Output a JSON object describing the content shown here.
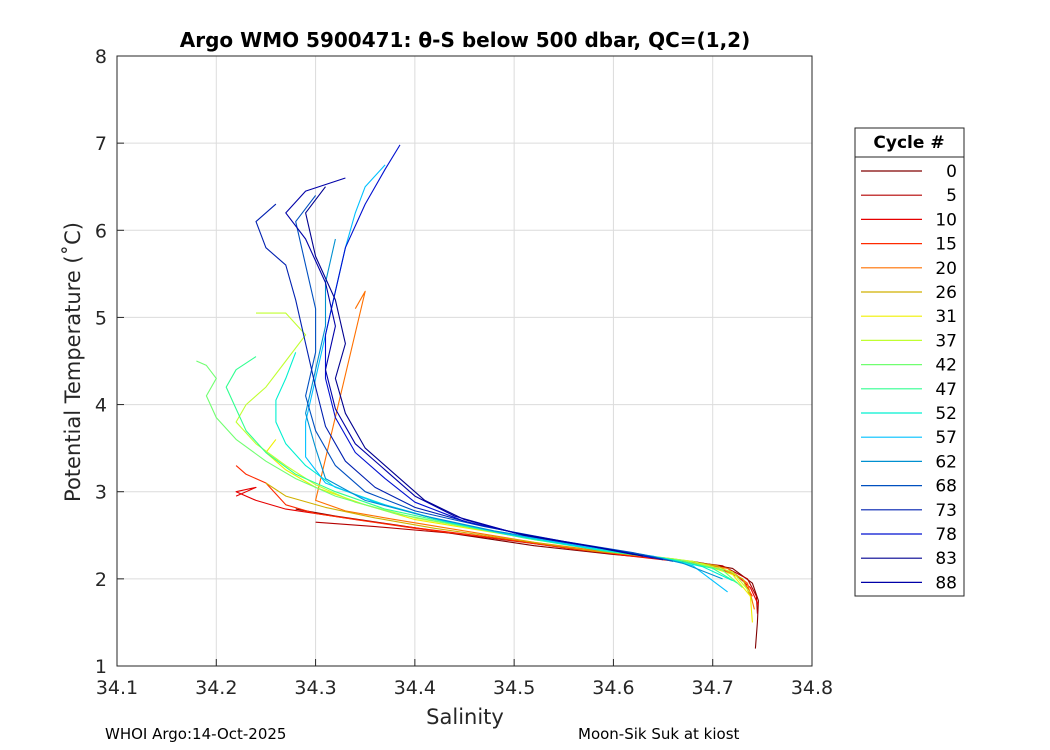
{
  "chart_data": {
    "type": "line",
    "title": "Argo WMO 5900471: θ-S below 500 dbar,  QC=(1,2)",
    "xlabel": "Salinity",
    "ylabel": "Potential Temperature (˚C)",
    "xlim": [
      34.1,
      34.8
    ],
    "ylim": [
      1,
      8
    ],
    "xticks": [
      "34.1",
      "34.2",
      "34.3",
      "34.4",
      "34.5",
      "34.6",
      "34.7",
      "34.8"
    ],
    "yticks": [
      "1",
      "2",
      "3",
      "4",
      "5",
      "6",
      "7",
      "8"
    ],
    "grid": true,
    "legend": {
      "title": "Cycle #",
      "placement": "right",
      "entries": [
        "0",
        "5",
        "10",
        "15",
        "20",
        "26",
        "31",
        "37",
        "42",
        "47",
        "52",
        "57",
        "62",
        "68",
        "73",
        "78",
        "83",
        "88"
      ],
      "colors": [
        "#800000",
        "#b40000",
        "#e60000",
        "#ff2a00",
        "#ff7000",
        "#d0b000",
        "#f0f000",
        "#c0ff30",
        "#70ff70",
        "#30ff90",
        "#00f0d0",
        "#00c0ff",
        "#0090d0",
        "#0050c0",
        "#0020b0",
        "#0010d0",
        "#000090",
        "#0000a8"
      ]
    },
    "series": [
      {
        "name": "0",
        "color": "#800000",
        "points": [
          [
            34.743,
            1.2
          ],
          [
            34.745,
            1.5
          ],
          [
            34.746,
            1.75
          ],
          [
            34.74,
            1.95
          ],
          [
            34.72,
            2.12
          ],
          [
            34.68,
            2.2
          ],
          [
            34.6,
            2.28
          ],
          [
            34.52,
            2.38
          ],
          [
            34.45,
            2.5
          ],
          [
            34.38,
            2.62
          ],
          [
            34.32,
            2.72
          ],
          [
            34.28,
            2.8
          ]
        ]
      },
      {
        "name": "5",
        "color": "#b40000",
        "points": [
          [
            34.745,
            1.6
          ],
          [
            34.744,
            1.8
          ],
          [
            34.735,
            2.0
          ],
          [
            34.71,
            2.15
          ],
          [
            34.66,
            2.22
          ],
          [
            34.59,
            2.3
          ],
          [
            34.51,
            2.42
          ],
          [
            34.44,
            2.52
          ],
          [
            34.36,
            2.6
          ],
          [
            34.3,
            2.65
          ]
        ]
      },
      {
        "name": "10",
        "color": "#e60000",
        "points": [
          [
            34.746,
            1.7
          ],
          [
            34.738,
            1.9
          ],
          [
            34.72,
            2.08
          ],
          [
            34.68,
            2.18
          ],
          [
            34.61,
            2.27
          ],
          [
            34.53,
            2.4
          ],
          [
            34.46,
            2.5
          ],
          [
            34.39,
            2.6
          ],
          [
            34.33,
            2.7
          ],
          [
            34.27,
            2.8
          ],
          [
            34.24,
            2.9
          ],
          [
            34.22,
            3.0
          ],
          [
            34.24,
            3.05
          ],
          [
            34.22,
            2.95
          ]
        ]
      },
      {
        "name": "15",
        "color": "#ff2a00",
        "points": [
          [
            34.74,
            1.8
          ],
          [
            34.73,
            2.0
          ],
          [
            34.7,
            2.15
          ],
          [
            34.64,
            2.24
          ],
          [
            34.56,
            2.34
          ],
          [
            34.48,
            2.47
          ],
          [
            34.4,
            2.58
          ],
          [
            34.34,
            2.68
          ],
          [
            34.3,
            2.75
          ],
          [
            34.27,
            2.85
          ],
          [
            34.25,
            3.1
          ],
          [
            34.23,
            3.2
          ],
          [
            34.22,
            3.3
          ]
        ]
      },
      {
        "name": "20",
        "color": "#ff7000",
        "points": [
          [
            34.742,
            1.65
          ],
          [
            34.735,
            1.95
          ],
          [
            34.715,
            2.12
          ],
          [
            34.67,
            2.21
          ],
          [
            34.6,
            2.3
          ],
          [
            34.52,
            2.42
          ],
          [
            34.45,
            2.55
          ],
          [
            34.38,
            2.68
          ],
          [
            34.33,
            2.78
          ],
          [
            34.3,
            2.9
          ],
          [
            34.35,
            5.3
          ],
          [
            34.34,
            5.1
          ]
        ]
      },
      {
        "name": "26",
        "color": "#d0b000",
        "points": [
          [
            34.74,
            1.75
          ],
          [
            34.73,
            2.0
          ],
          [
            34.705,
            2.15
          ],
          [
            34.66,
            2.23
          ],
          [
            34.58,
            2.32
          ],
          [
            34.5,
            2.45
          ],
          [
            34.42,
            2.58
          ],
          [
            34.36,
            2.7
          ],
          [
            34.31,
            2.82
          ],
          [
            34.27,
            2.95
          ],
          [
            34.25,
            3.1
          ]
        ]
      },
      {
        "name": "31",
        "color": "#f0f000",
        "points": [
          [
            34.74,
            1.5
          ],
          [
            34.738,
            1.8
          ],
          [
            34.72,
            2.05
          ],
          [
            34.68,
            2.2
          ],
          [
            34.61,
            2.3
          ],
          [
            34.54,
            2.42
          ],
          [
            34.47,
            2.55
          ],
          [
            34.4,
            2.68
          ],
          [
            34.35,
            2.85
          ],
          [
            34.3,
            3.05
          ],
          [
            34.27,
            3.25
          ],
          [
            34.25,
            3.45
          ],
          [
            34.26,
            3.6
          ]
        ]
      },
      {
        "name": "37",
        "color": "#c0ff30",
        "points": [
          [
            34.737,
            1.85
          ],
          [
            34.72,
            2.08
          ],
          [
            34.68,
            2.2
          ],
          [
            34.61,
            2.3
          ],
          [
            34.54,
            2.42
          ],
          [
            34.47,
            2.56
          ],
          [
            34.4,
            2.7
          ],
          [
            34.34,
            2.88
          ],
          [
            34.3,
            3.08
          ],
          [
            34.27,
            3.3
          ],
          [
            34.24,
            3.55
          ],
          [
            34.22,
            3.8
          ],
          [
            34.23,
            4.0
          ],
          [
            34.25,
            4.2
          ],
          [
            34.27,
            4.5
          ],
          [
            34.29,
            4.8
          ],
          [
            34.27,
            5.05
          ],
          [
            34.24,
            5.05
          ]
        ]
      },
      {
        "name": "42",
        "color": "#70ff70",
        "points": [
          [
            34.73,
            1.9
          ],
          [
            34.71,
            2.1
          ],
          [
            34.67,
            2.21
          ],
          [
            34.6,
            2.31
          ],
          [
            34.52,
            2.45
          ],
          [
            34.45,
            2.6
          ],
          [
            34.38,
            2.75
          ],
          [
            34.32,
            2.95
          ],
          [
            34.28,
            3.15
          ],
          [
            34.25,
            3.35
          ],
          [
            34.22,
            3.6
          ],
          [
            34.2,
            3.85
          ],
          [
            34.19,
            4.1
          ],
          [
            34.2,
            4.3
          ],
          [
            34.19,
            4.45
          ],
          [
            34.18,
            4.5
          ]
        ]
      },
      {
        "name": "47",
        "color": "#30ff90",
        "points": [
          [
            34.725,
            1.95
          ],
          [
            34.7,
            2.12
          ],
          [
            34.66,
            2.22
          ],
          [
            34.59,
            2.32
          ],
          [
            34.51,
            2.47
          ],
          [
            34.44,
            2.63
          ],
          [
            34.37,
            2.8
          ],
          [
            34.32,
            3.0
          ],
          [
            34.28,
            3.2
          ],
          [
            34.25,
            3.45
          ],
          [
            34.23,
            3.7
          ],
          [
            34.22,
            3.95
          ],
          [
            34.21,
            4.2
          ],
          [
            34.22,
            4.4
          ],
          [
            34.24,
            4.55
          ]
        ]
      },
      {
        "name": "52",
        "color": "#00f0d0",
        "points": [
          [
            34.72,
            1.98
          ],
          [
            34.69,
            2.14
          ],
          [
            34.65,
            2.24
          ],
          [
            34.58,
            2.34
          ],
          [
            34.5,
            2.5
          ],
          [
            34.43,
            2.66
          ],
          [
            34.37,
            2.85
          ],
          [
            34.32,
            3.05
          ],
          [
            34.29,
            3.3
          ],
          [
            34.27,
            3.55
          ],
          [
            34.26,
            3.8
          ],
          [
            34.26,
            4.05
          ],
          [
            34.27,
            4.3
          ],
          [
            34.28,
            4.6
          ]
        ]
      },
      {
        "name": "57",
        "color": "#00c0ff",
        "points": [
          [
            34.715,
            1.85
          ],
          [
            34.68,
            2.15
          ],
          [
            34.64,
            2.26
          ],
          [
            34.57,
            2.37
          ],
          [
            34.49,
            2.52
          ],
          [
            34.42,
            2.69
          ],
          [
            34.36,
            2.88
          ],
          [
            34.31,
            3.1
          ],
          [
            34.29,
            3.4
          ],
          [
            34.29,
            3.8
          ],
          [
            34.3,
            4.3
          ],
          [
            34.31,
            4.8
          ],
          [
            34.32,
            5.3
          ],
          [
            34.33,
            5.8
          ],
          [
            34.34,
            6.2
          ],
          [
            34.35,
            6.5
          ],
          [
            34.37,
            6.75
          ]
        ]
      },
      {
        "name": "62",
        "color": "#0090d0",
        "points": [
          [
            34.71,
            2.0
          ],
          [
            34.67,
            2.18
          ],
          [
            34.63,
            2.28
          ],
          [
            34.56,
            2.4
          ],
          [
            34.48,
            2.55
          ],
          [
            34.41,
            2.72
          ],
          [
            34.35,
            2.9
          ],
          [
            34.31,
            3.15
          ],
          [
            34.3,
            3.5
          ],
          [
            34.29,
            3.9
          ],
          [
            34.3,
            4.4
          ],
          [
            34.31,
            4.9
          ],
          [
            34.31,
            5.4
          ],
          [
            34.32,
            5.9
          ]
        ]
      },
      {
        "name": "68",
        "color": "#0050c0",
        "points": [
          [
            34.66,
            2.2
          ],
          [
            34.62,
            2.3
          ],
          [
            34.55,
            2.43
          ],
          [
            34.47,
            2.6
          ],
          [
            34.4,
            2.78
          ],
          [
            34.35,
            3.0
          ],
          [
            34.32,
            3.3
          ],
          [
            34.3,
            3.7
          ],
          [
            34.29,
            4.1
          ],
          [
            34.3,
            4.6
          ],
          [
            34.3,
            5.1
          ],
          [
            34.29,
            5.6
          ],
          [
            34.28,
            6.1
          ],
          [
            34.3,
            6.4
          ]
        ]
      },
      {
        "name": "73",
        "color": "#0020b0",
        "points": [
          [
            34.65,
            2.22
          ],
          [
            34.6,
            2.33
          ],
          [
            34.53,
            2.46
          ],
          [
            34.46,
            2.63
          ],
          [
            34.4,
            2.82
          ],
          [
            34.36,
            3.05
          ],
          [
            34.33,
            3.35
          ],
          [
            34.31,
            3.75
          ],
          [
            34.3,
            4.2
          ],
          [
            34.29,
            4.7
          ],
          [
            34.28,
            5.2
          ],
          [
            34.27,
            5.6
          ],
          [
            34.25,
            5.8
          ],
          [
            34.24,
            6.1
          ],
          [
            34.26,
            6.3
          ]
        ]
      },
      {
        "name": "78",
        "color": "#0010d0",
        "points": [
          [
            34.64,
            2.24
          ],
          [
            34.59,
            2.35
          ],
          [
            34.52,
            2.48
          ],
          [
            34.45,
            2.66
          ],
          [
            34.4,
            2.88
          ],
          [
            34.37,
            3.15
          ],
          [
            34.34,
            3.45
          ],
          [
            34.32,
            3.85
          ],
          [
            34.31,
            4.3
          ],
          [
            34.31,
            4.8
          ],
          [
            34.32,
            5.3
          ],
          [
            34.33,
            5.8
          ],
          [
            34.35,
            6.3
          ],
          [
            34.37,
            6.7
          ],
          [
            34.385,
            6.98
          ]
        ]
      },
      {
        "name": "83",
        "color": "#000090",
        "points": [
          [
            34.63,
            2.26
          ],
          [
            34.58,
            2.37
          ],
          [
            34.51,
            2.5
          ],
          [
            34.45,
            2.68
          ],
          [
            34.41,
            2.9
          ],
          [
            34.38,
            3.2
          ],
          [
            34.35,
            3.5
          ],
          [
            34.33,
            3.9
          ],
          [
            34.32,
            4.3
          ],
          [
            34.33,
            4.7
          ],
          [
            34.32,
            5.2
          ],
          [
            34.3,
            5.7
          ],
          [
            34.29,
            6.2
          ],
          [
            34.31,
            6.5
          ]
        ]
      },
      {
        "name": "88",
        "color": "#0000a8",
        "points": [
          [
            34.62,
            2.28
          ],
          [
            34.57,
            2.39
          ],
          [
            34.5,
            2.53
          ],
          [
            34.44,
            2.72
          ],
          [
            34.4,
            2.95
          ],
          [
            34.37,
            3.25
          ],
          [
            34.34,
            3.55
          ],
          [
            34.32,
            3.95
          ],
          [
            34.31,
            4.4
          ],
          [
            34.32,
            4.9
          ],
          [
            34.31,
            5.4
          ],
          [
            34.29,
            5.9
          ],
          [
            34.27,
            6.2
          ],
          [
            34.29,
            6.45
          ],
          [
            34.33,
            6.6
          ]
        ]
      }
    ]
  },
  "footer": {
    "left": "WHOI Argo:14-Oct-2025",
    "right": "Moon-Sik Suk at kiost"
  }
}
